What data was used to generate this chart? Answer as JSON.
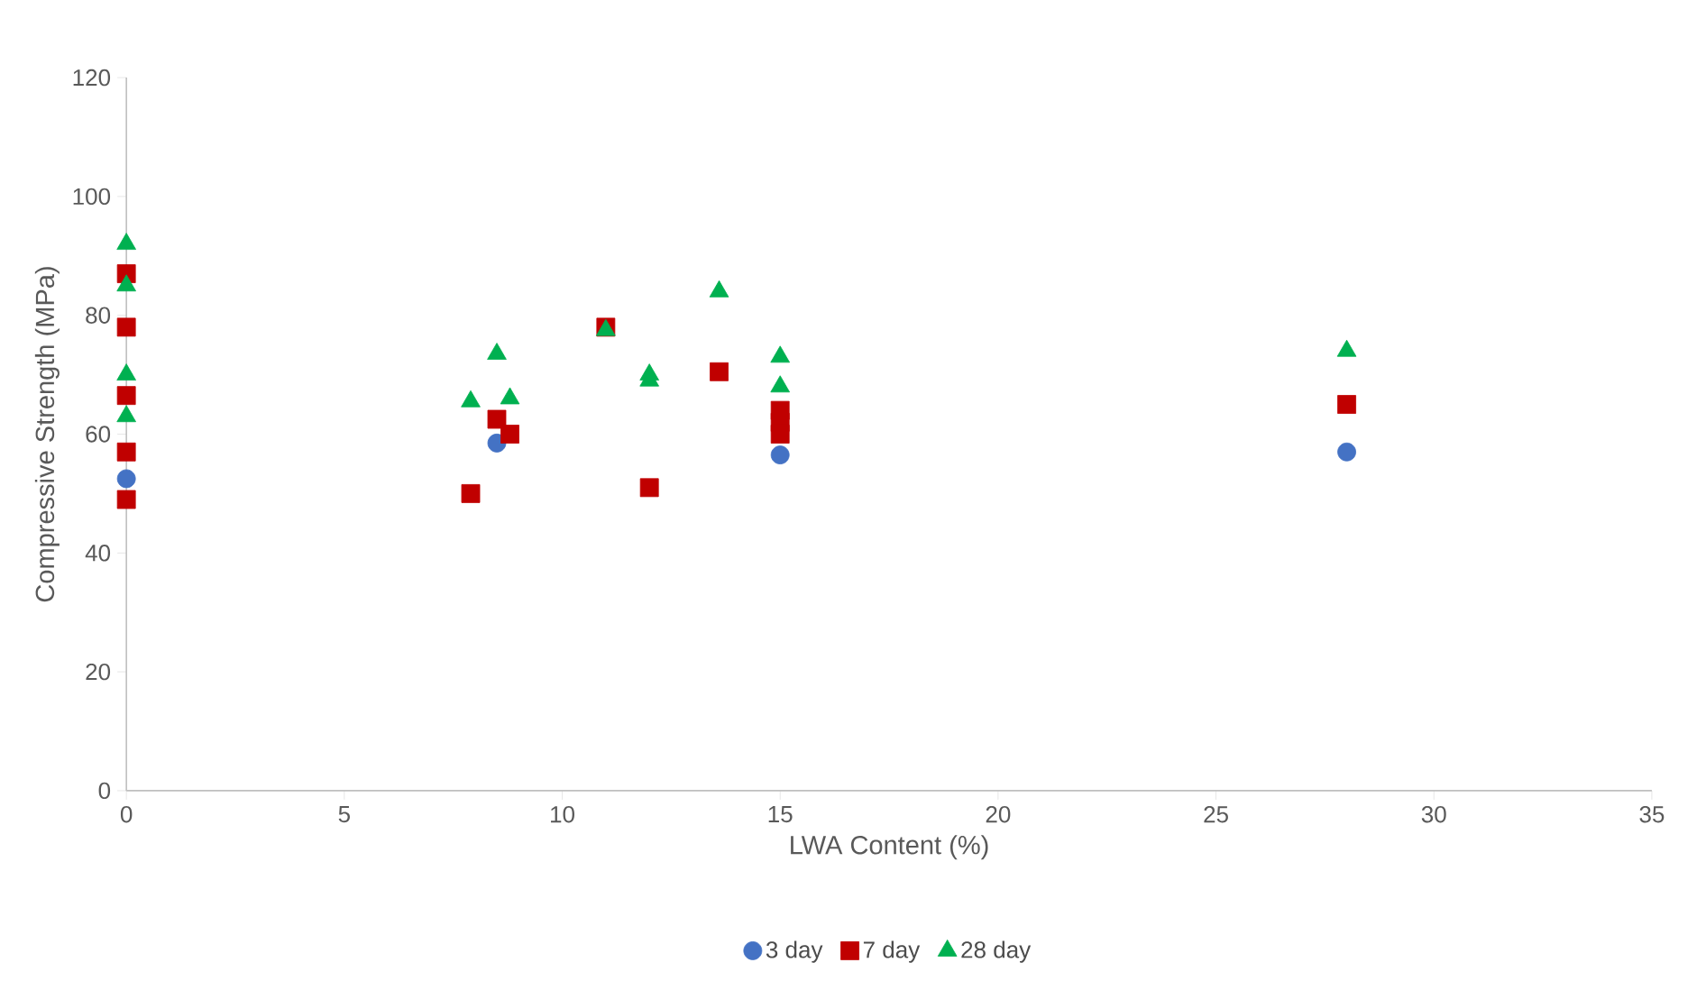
{
  "chart_data": {
    "type": "scatter",
    "xlabel": "LWA Content (%)",
    "ylabel": "Compressive Strength (MPa)",
    "xlim": [
      0,
      35
    ],
    "xticks": [
      0,
      5,
      10,
      15,
      20,
      25,
      30,
      35
    ],
    "ylim": [
      0,
      120
    ],
    "yticks": [
      0,
      20,
      40,
      60,
      80,
      100,
      120
    ],
    "grid": false,
    "legend": "bottom",
    "series": [
      {
        "name": "3 day",
        "color": "#4472c4",
        "marker": "circle",
        "x": [
          0,
          8.5,
          15,
          28
        ],
        "values": [
          52.5,
          58.5,
          56.5,
          57
        ]
      },
      {
        "name": "7 day",
        "color": "#c00000",
        "marker": "square",
        "x": [
          0,
          0,
          0,
          0,
          0,
          7.9,
          8.5,
          8.8,
          11,
          12,
          13.6,
          15,
          15,
          15,
          28
        ],
        "values": [
          87,
          78,
          66.5,
          57,
          49,
          50,
          62.5,
          60,
          78,
          51,
          70.5,
          64,
          62,
          60,
          65
        ]
      },
      {
        "name": "28 day",
        "color": "#00b050",
        "marker": "triangle",
        "x": [
          0,
          0,
          0,
          0,
          7.9,
          8.5,
          8.8,
          11,
          12,
          12,
          13.6,
          15,
          15,
          28
        ],
        "values": [
          92,
          85,
          70,
          63,
          65.5,
          73.5,
          66,
          77.5,
          70,
          69,
          84,
          73,
          68,
          74
        ]
      }
    ]
  }
}
